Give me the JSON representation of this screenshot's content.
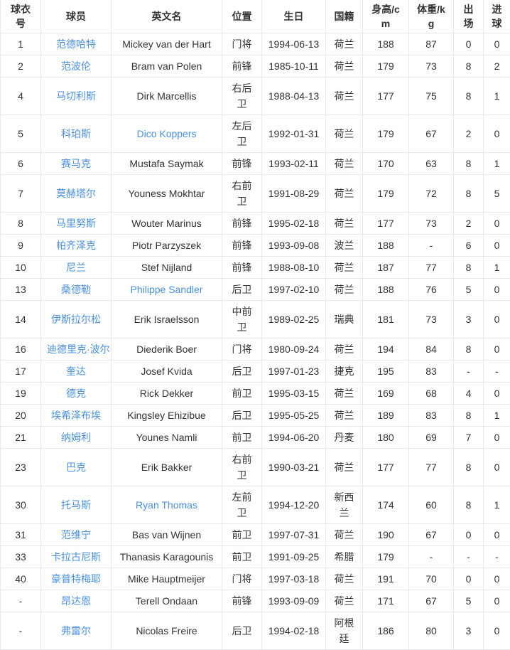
{
  "table": {
    "link_color": "#4a90e2",
    "text_color": "#333333",
    "border_color": "#e9e9e9",
    "columns": [
      {
        "key": "no",
        "label": "球衣号"
      },
      {
        "key": "name",
        "label": "球员"
      },
      {
        "key": "en",
        "label": "英文名"
      },
      {
        "key": "pos",
        "label": "位置"
      },
      {
        "key": "dob",
        "label": "生日"
      },
      {
        "key": "nat",
        "label": "国籍"
      },
      {
        "key": "height",
        "label": "身高/cm"
      },
      {
        "key": "weight",
        "label": "体重/kg"
      },
      {
        "key": "apps",
        "label": "出场"
      },
      {
        "key": "goals",
        "label": "进球"
      }
    ],
    "rows": [
      {
        "no": "1",
        "name": "范德哈特",
        "en": "Mickey van der Hart",
        "en_link": false,
        "pos": "门将",
        "dob": "1994-06-13",
        "nat": "荷兰",
        "height": "188",
        "weight": "87",
        "apps": "0",
        "goals": "0"
      },
      {
        "no": "2",
        "name": "范波伦",
        "en": "Bram van Polen",
        "en_link": false,
        "pos": "前锋",
        "dob": "1985-10-11",
        "nat": "荷兰",
        "height": "179",
        "weight": "73",
        "apps": "8",
        "goals": "2"
      },
      {
        "no": "4",
        "name": "马切利斯",
        "en": "Dirk Marcellis",
        "en_link": false,
        "pos": "右后卫",
        "dob": "1988-04-13",
        "nat": "荷兰",
        "height": "177",
        "weight": "75",
        "apps": "8",
        "goals": "1"
      },
      {
        "no": "5",
        "name": "科珀斯",
        "en": "Dico Koppers",
        "en_link": true,
        "pos": "左后卫",
        "dob": "1992-01-31",
        "nat": "荷兰",
        "height": "179",
        "weight": "67",
        "apps": "2",
        "goals": "0"
      },
      {
        "no": "6",
        "name": "赛马克",
        "en": "Mustafa Saymak",
        "en_link": false,
        "pos": "前锋",
        "dob": "1993-02-11",
        "nat": "荷兰",
        "height": "170",
        "weight": "63",
        "apps": "8",
        "goals": "1"
      },
      {
        "no": "7",
        "name": "莫赫塔尔",
        "en": "Youness Mokhtar",
        "en_link": false,
        "pos": "右前卫",
        "dob": "1991-08-29",
        "nat": "荷兰",
        "height": "179",
        "weight": "72",
        "apps": "8",
        "goals": "5"
      },
      {
        "no": "8",
        "name": "马里努斯",
        "en": "Wouter Marinus",
        "en_link": false,
        "pos": "前锋",
        "dob": "1995-02-18",
        "nat": "荷兰",
        "height": "177",
        "weight": "73",
        "apps": "2",
        "goals": "0"
      },
      {
        "no": "9",
        "name": "帕齐泽克",
        "en": "Piotr Parzyszek",
        "en_link": false,
        "pos": "前锋",
        "dob": "1993-09-08",
        "nat": "波兰",
        "height": "188",
        "weight": "-",
        "apps": "6",
        "goals": "0"
      },
      {
        "no": "10",
        "name": "尼兰",
        "en": "Stef Nijland",
        "en_link": false,
        "pos": "前锋",
        "dob": "1988-08-10",
        "nat": "荷兰",
        "height": "187",
        "weight": "77",
        "apps": "8",
        "goals": "1"
      },
      {
        "no": "13",
        "name": "桑德勒",
        "en": "Philippe Sandler",
        "en_link": true,
        "pos": "后卫",
        "dob": "1997-02-10",
        "nat": "荷兰",
        "height": "188",
        "weight": "76",
        "apps": "5",
        "goals": "0"
      },
      {
        "no": "14",
        "name": "伊斯拉尔松",
        "en": "Erik Israelsson",
        "en_link": false,
        "pos": "中前卫",
        "dob": "1989-02-25",
        "nat": "瑞典",
        "height": "181",
        "weight": "73",
        "apps": "3",
        "goals": "0"
      },
      {
        "no": "16",
        "name": "迪德里克·波尔",
        "en": "Diederik Boer",
        "en_link": false,
        "pos": "门将",
        "dob": "1980-09-24",
        "nat": "荷兰",
        "height": "194",
        "weight": "84",
        "apps": "8",
        "goals": "0"
      },
      {
        "no": "17",
        "name": "奎达",
        "en": "Josef Kvida",
        "en_link": false,
        "pos": "后卫",
        "dob": "1997-01-23",
        "nat": "捷克",
        "height": "195",
        "weight": "83",
        "apps": "-",
        "goals": "-"
      },
      {
        "no": "19",
        "name": "德克",
        "en": "Rick Dekker",
        "en_link": false,
        "pos": "前卫",
        "dob": "1995-03-15",
        "nat": "荷兰",
        "height": "169",
        "weight": "68",
        "apps": "4",
        "goals": "0"
      },
      {
        "no": "20",
        "name": "埃希泽布埃",
        "en": "Kingsley Ehizibue",
        "en_link": false,
        "pos": "后卫",
        "dob": "1995-05-25",
        "nat": "荷兰",
        "height": "189",
        "weight": "83",
        "apps": "8",
        "goals": "1"
      },
      {
        "no": "21",
        "name": "纳姆利",
        "en": "Younes Namli",
        "en_link": false,
        "pos": "前卫",
        "dob": "1994-06-20",
        "nat": "丹麦",
        "height": "180",
        "weight": "69",
        "apps": "7",
        "goals": "0"
      },
      {
        "no": "23",
        "name": "巴克",
        "en": "Erik Bakker",
        "en_link": false,
        "pos": "右前卫",
        "dob": "1990-03-21",
        "nat": "荷兰",
        "height": "177",
        "weight": "77",
        "apps": "8",
        "goals": "0"
      },
      {
        "no": "30",
        "name": "托马斯",
        "en": "Ryan Thomas",
        "en_link": true,
        "pos": "左前卫",
        "dob": "1994-12-20",
        "nat": "新西兰",
        "height": "174",
        "weight": "60",
        "apps": "8",
        "goals": "1"
      },
      {
        "no": "31",
        "name": "范维宁",
        "en": "Bas van Wijnen",
        "en_link": false,
        "pos": "前卫",
        "dob": "1997-07-31",
        "nat": "荷兰",
        "height": "190",
        "weight": "67",
        "apps": "0",
        "goals": "0"
      },
      {
        "no": "33",
        "name": "卡拉古尼斯",
        "en": "Thanasis Karagounis",
        "en_link": false,
        "pos": "前卫",
        "dob": "1991-09-25",
        "nat": "希腊",
        "height": "179",
        "weight": "-",
        "apps": "-",
        "goals": "-"
      },
      {
        "no": "40",
        "name": "豪普特梅耶",
        "en": "Mike Hauptmeijer",
        "en_link": false,
        "pos": "门将",
        "dob": "1997-03-18",
        "nat": "荷兰",
        "height": "191",
        "weight": "70",
        "apps": "0",
        "goals": "0"
      },
      {
        "no": "-",
        "name": "昂达恩",
        "en": "Terell Ondaan",
        "en_link": false,
        "pos": "前锋",
        "dob": "1993-09-09",
        "nat": "荷兰",
        "height": "171",
        "weight": "67",
        "apps": "5",
        "goals": "0"
      },
      {
        "no": "-",
        "name": "弗雷尔",
        "en": "Nicolas Freire",
        "en_link": false,
        "pos": "后卫",
        "dob": "1994-02-18",
        "nat": "阿根廷",
        "height": "186",
        "weight": "80",
        "apps": "3",
        "goals": "0"
      }
    ]
  }
}
